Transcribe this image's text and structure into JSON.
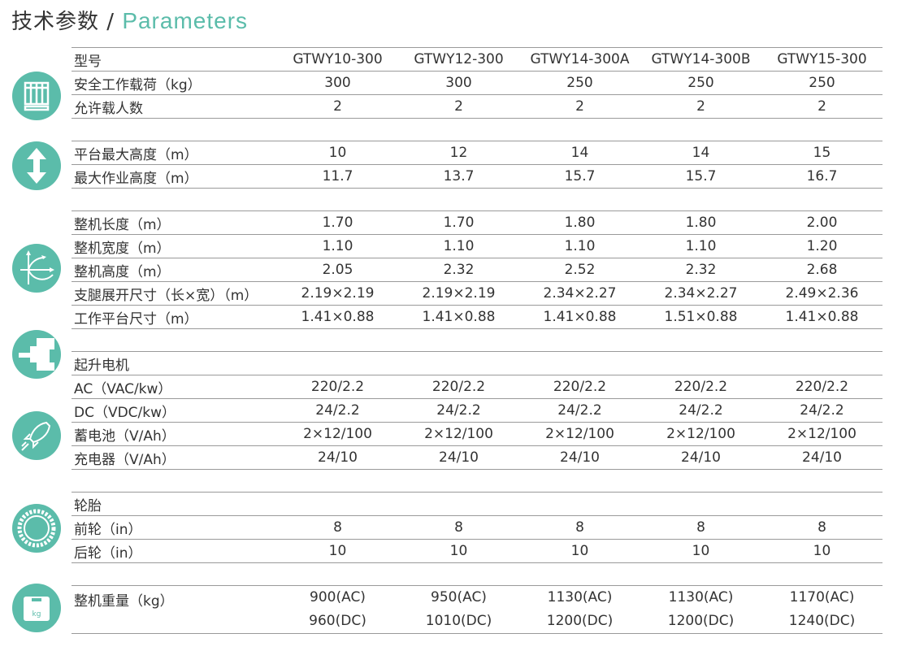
{
  "title": {
    "cn": "技术参数",
    "sep": "/",
    "en": "Parameters"
  },
  "colors": {
    "accent": "#5bbcaa"
  },
  "header": {
    "label": "型号",
    "models": [
      "GTWY10-300",
      "GTWY12-300",
      "GTWY14-300A",
      "GTWY14-300B",
      "GTWY15-300"
    ]
  },
  "groups": [
    {
      "icon": "platform-icon",
      "rows": [
        {
          "label": "安全工作载荷（kg）",
          "values": [
            "300",
            "300",
            "250",
            "250",
            "250"
          ]
        },
        {
          "label": "允许载人数",
          "values": [
            "2",
            "2",
            "2",
            "2",
            "2"
          ]
        }
      ]
    },
    {
      "icon": "height-arrow-icon",
      "rows": [
        {
          "label": "平台最大高度（m）",
          "values": [
            "10",
            "12",
            "14",
            "14",
            "15"
          ]
        },
        {
          "label": "最大作业高度（m）",
          "values": [
            "11.7",
            "13.7",
            "15.7",
            "15.7",
            "16.7"
          ]
        }
      ]
    },
    {
      "icon": "dimensions-icon",
      "rows": [
        {
          "label": "整机长度（m）",
          "values": [
            "1.70",
            "1.70",
            "1.80",
            "1.80",
            "2.00"
          ]
        },
        {
          "label": "整机宽度（m）",
          "values": [
            "1.10",
            "1.10",
            "1.10",
            "1.10",
            "1.20"
          ]
        },
        {
          "label": "整机高度（m）",
          "values": [
            "2.05",
            "2.32",
            "2.52",
            "2.32",
            "2.68"
          ]
        },
        {
          "label": "支腿展开尺寸（长×宽）（m）",
          "values": [
            "2.19×2.19",
            "2.19×2.19",
            "2.34×2.27",
            "2.34×2.27",
            "2.49×2.36"
          ]
        },
        {
          "label": "工作平台尺寸（m）",
          "values": [
            "1.41×0.88",
            "1.41×0.88",
            "1.41×0.88",
            "1.51×0.88",
            "1.41×0.88"
          ]
        }
      ]
    },
    {
      "icon": "motor-icon",
      "rows": [
        {
          "label": "起升电机",
          "values": [
            "",
            "",
            "",
            "",
            ""
          ]
        },
        {
          "label": "AC（VAC/kw）",
          "values": [
            "220/2.2",
            "220/2.2",
            "220/2.2",
            "220/2.2",
            "220/2.2"
          ]
        },
        {
          "label": "DC（VDC/kw）",
          "values": [
            "24/2.2",
            "24/2.2",
            "24/2.2",
            "24/2.2",
            "24/2.2"
          ]
        },
        {
          "label": "蓄电池（V/Ah）",
          "values": [
            "2×12/100",
            "2×12/100",
            "2×12/100",
            "2×12/100",
            "2×12/100"
          ]
        },
        {
          "label": "充电器（V/Ah）",
          "values": [
            "24/10",
            "24/10",
            "24/10",
            "24/10",
            "24/10"
          ]
        }
      ]
    },
    {
      "icon": "tire-icon",
      "rows": [
        {
          "label": "轮胎",
          "values": [
            "",
            "",
            "",
            "",
            ""
          ]
        },
        {
          "label": "前轮（in）",
          "values": [
            "8",
            "8",
            "8",
            "8",
            "8"
          ]
        },
        {
          "label": "后轮（in）",
          "values": [
            "10",
            "10",
            "10",
            "10",
            "10"
          ]
        }
      ]
    }
  ],
  "weight": {
    "icon": "weight-icon",
    "icon_text": "kg",
    "label": "整机重量（kg）",
    "ac": [
      "900(AC)",
      "950(AC)",
      "1130(AC)",
      "1130(AC)",
      "1170(AC)"
    ],
    "dc": [
      "960(DC)",
      "1010(DC)",
      "1200(DC)",
      "1200(DC)",
      "1240(DC)"
    ]
  }
}
